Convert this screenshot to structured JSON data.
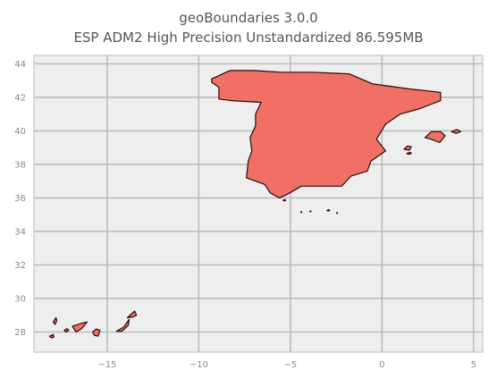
{
  "title_line1": "geoBoundaries 3.0.0",
  "title_line2": "ESP ADM2 High Precision Unstandardized 86.595MB",
  "colors": {
    "plot_background": "#eeeeee",
    "grid": "#bcbcbc",
    "fill": "#f07066",
    "edge": "#2a0a08"
  },
  "chart_data": {
    "type": "map",
    "xlim": [
      -19,
      5.5
    ],
    "ylim": [
      26.8,
      44.5
    ],
    "xticks": [
      -15,
      -10,
      -5,
      0,
      5
    ],
    "yticks": [
      28,
      30,
      32,
      34,
      36,
      38,
      40,
      42,
      44
    ],
    "xtick_labels": [
      "−15",
      "−10",
      "−5",
      "0",
      "5"
    ],
    "ytick_labels": [
      "28",
      "30",
      "32",
      "34",
      "36",
      "38",
      "40",
      "42",
      "44"
    ],
    "grid": true,
    "regions": [
      {
        "name": "mainland",
        "lonlat": [
          [
            -9.3,
            43.1
          ],
          [
            -8.3,
            43.6
          ],
          [
            -7.0,
            43.6
          ],
          [
            -5.5,
            43.5
          ],
          [
            -3.8,
            43.5
          ],
          [
            -1.8,
            43.4
          ],
          [
            -0.5,
            42.8
          ],
          [
            1.5,
            42.5
          ],
          [
            3.2,
            42.3
          ],
          [
            3.2,
            41.8
          ],
          [
            2.0,
            41.3
          ],
          [
            1.0,
            41.0
          ],
          [
            0.2,
            40.4
          ],
          [
            -0.3,
            39.5
          ],
          [
            0.2,
            38.8
          ],
          [
            -0.6,
            38.2
          ],
          [
            -0.8,
            37.6
          ],
          [
            -1.7,
            37.3
          ],
          [
            -2.2,
            36.7
          ],
          [
            -3.5,
            36.7
          ],
          [
            -4.4,
            36.7
          ],
          [
            -5.2,
            36.2
          ],
          [
            -5.6,
            36.0
          ],
          [
            -6.1,
            36.3
          ],
          [
            -6.4,
            36.8
          ],
          [
            -7.4,
            37.2
          ],
          [
            -7.3,
            38.2
          ],
          [
            -7.1,
            38.8
          ],
          [
            -7.2,
            39.6
          ],
          [
            -6.9,
            40.3
          ],
          [
            -6.9,
            41.0
          ],
          [
            -6.6,
            41.7
          ],
          [
            -8.2,
            41.8
          ],
          [
            -8.9,
            41.9
          ],
          [
            -8.9,
            42.6
          ],
          [
            -9.3,
            42.9
          ]
        ]
      },
      {
        "name": "mallorca",
        "lonlat": [
          [
            2.35,
            39.6
          ],
          [
            2.7,
            39.95
          ],
          [
            3.2,
            39.95
          ],
          [
            3.45,
            39.7
          ],
          [
            3.15,
            39.3
          ],
          [
            2.7,
            39.5
          ]
        ]
      },
      {
        "name": "menorca",
        "lonlat": [
          [
            3.8,
            39.95
          ],
          [
            4.1,
            40.08
          ],
          [
            4.3,
            39.95
          ],
          [
            4.05,
            39.85
          ]
        ]
      },
      {
        "name": "ibiza",
        "lonlat": [
          [
            1.2,
            38.9
          ],
          [
            1.4,
            39.1
          ],
          [
            1.6,
            39.05
          ],
          [
            1.5,
            38.85
          ]
        ]
      },
      {
        "name": "formentera",
        "lonlat": [
          [
            1.35,
            38.65
          ],
          [
            1.55,
            38.72
          ],
          [
            1.6,
            38.65
          ],
          [
            1.45,
            38.6
          ]
        ]
      },
      {
        "name": "lanzarote",
        "lonlat": [
          [
            -13.9,
            28.85
          ],
          [
            -13.5,
            29.25
          ],
          [
            -13.4,
            29.0
          ],
          [
            -13.6,
            28.9
          ]
        ]
      },
      {
        "name": "fuerteventura",
        "lonlat": [
          [
            -14.5,
            28.05
          ],
          [
            -14.1,
            28.3
          ],
          [
            -13.8,
            28.75
          ],
          [
            -13.85,
            28.4
          ],
          [
            -14.2,
            28.05
          ]
        ]
      },
      {
        "name": "gran-canaria",
        "lonlat": [
          [
            -15.8,
            28.0
          ],
          [
            -15.6,
            28.18
          ],
          [
            -15.4,
            28.1
          ],
          [
            -15.5,
            27.75
          ],
          [
            -15.7,
            27.8
          ]
        ]
      },
      {
        "name": "tenerife",
        "lonlat": [
          [
            -16.9,
            28.35
          ],
          [
            -16.3,
            28.55
          ],
          [
            -16.1,
            28.6
          ],
          [
            -16.4,
            28.2
          ],
          [
            -16.7,
            28.0
          ]
        ]
      },
      {
        "name": "la-gomera",
        "lonlat": [
          [
            -17.35,
            28.1
          ],
          [
            -17.2,
            28.2
          ],
          [
            -17.1,
            28.1
          ],
          [
            -17.25,
            28.0
          ]
        ]
      },
      {
        "name": "la-palma",
        "lonlat": [
          [
            -17.95,
            28.6
          ],
          [
            -17.8,
            28.85
          ],
          [
            -17.75,
            28.7
          ],
          [
            -17.85,
            28.45
          ]
        ]
      },
      {
        "name": "el-hierro",
        "lonlat": [
          [
            -18.15,
            27.75
          ],
          [
            -17.95,
            27.85
          ],
          [
            -17.9,
            27.7
          ],
          [
            -18.05,
            27.65
          ]
        ]
      },
      {
        "name": "ceuta",
        "lonlat": [
          [
            -5.4,
            35.85
          ],
          [
            -5.3,
            35.9
          ],
          [
            -5.25,
            35.85
          ],
          [
            -5.35,
            35.82
          ]
        ]
      },
      {
        "name": "melilla",
        "lonlat": [
          [
            -3.0,
            35.25
          ],
          [
            -2.9,
            35.3
          ],
          [
            -2.85,
            35.25
          ],
          [
            -2.95,
            35.22
          ]
        ]
      }
    ],
    "islets": [
      [
        -4.4,
        35.15
      ],
      [
        -3.9,
        35.2
      ],
      [
        -2.45,
        35.1
      ]
    ]
  }
}
